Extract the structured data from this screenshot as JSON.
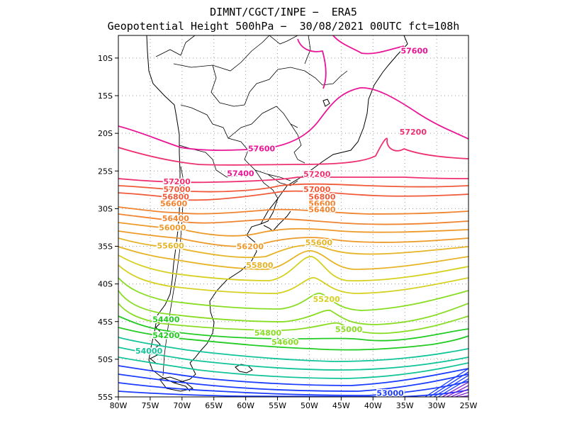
{
  "header": {
    "line1": "DIMNT/CGCT/INPE −  ERA5",
    "line2": "Geopotential Height 500hPa −  30/08/2021 00UTC fct=108h"
  },
  "axes": {
    "lon_labels": [
      "80W",
      "75W",
      "70W",
      "65W",
      "60W",
      "55W",
      "50W",
      "45W",
      "40W",
      "35W",
      "30W",
      "25W"
    ],
    "lat_labels": [
      "10S",
      "15S",
      "20S",
      "25S",
      "30S",
      "35S",
      "40S",
      "45S",
      "50S",
      "55S"
    ]
  },
  "colors": {
    "c53000": "#1c3cff",
    "c54000": "#12c49a",
    "c54200": "#22cc22",
    "c54800": "#88dd22",
    "c55200": "#d6d020",
    "c55600": "#e6b426",
    "c56000": "#ee9a2a",
    "c56400": "#f08430",
    "c56800": "#f05a3a",
    "c57200": "#ee3070",
    "c57600": "#ea1496"
  },
  "chart_data": {
    "type": "contour",
    "variable": "Geopotential Height 500hPa",
    "units": "gpm",
    "x_range_lon": [
      -80,
      -25
    ],
    "y_range_lat": [
      -55,
      -7
    ],
    "contour_interval": 200,
    "contour_labels": [
      {
        "value": "57600",
        "lon": -33.5,
        "lat": -9.0
      },
      {
        "value": "57600",
        "lon": -57.5,
        "lat": -22.0
      },
      {
        "value": "57200",
        "lon": -33.7,
        "lat": -19.8
      },
      {
        "value": "57400",
        "lon": -60.8,
        "lat": -25.3
      },
      {
        "value": "57200",
        "lon": -48.8,
        "lat": -25.4
      },
      {
        "value": "57200",
        "lon": -70.8,
        "lat": -26.4
      },
      {
        "value": "57000",
        "lon": -70.8,
        "lat": -27.4
      },
      {
        "value": "57000",
        "lon": -48.8,
        "lat": -27.4
      },
      {
        "value": "56800",
        "lon": -71.0,
        "lat": -28.4
      },
      {
        "value": "56800",
        "lon": -48.0,
        "lat": -28.4
      },
      {
        "value": "56600",
        "lon": -71.3,
        "lat": -29.3
      },
      {
        "value": "56600",
        "lon": -48.0,
        "lat": -29.3
      },
      {
        "value": "56400",
        "lon": -48.0,
        "lat": -30.1
      },
      {
        "value": "56400",
        "lon": -71.0,
        "lat": -31.3
      },
      {
        "value": "56000",
        "lon": -71.5,
        "lat": -32.5
      },
      {
        "value": "56200",
        "lon": -59.3,
        "lat": -35.0
      },
      {
        "value": "55600",
        "lon": -48.5,
        "lat": -34.5
      },
      {
        "value": "55600",
        "lon": -71.8,
        "lat": -34.9
      },
      {
        "value": "55800",
        "lon": -57.8,
        "lat": -37.5
      },
      {
        "value": "55200",
        "lon": -47.3,
        "lat": -42.0
      },
      {
        "value": "54400",
        "lon": -72.5,
        "lat": -44.7
      },
      {
        "value": "55000",
        "lon": -43.8,
        "lat": -46.0
      },
      {
        "value": "54800",
        "lon": -56.5,
        "lat": -46.5
      },
      {
        "value": "54200",
        "lon": -72.5,
        "lat": -46.8
      },
      {
        "value": "54600",
        "lon": -53.8,
        "lat": -47.7
      },
      {
        "value": "54000",
        "lon": -75.2,
        "lat": -48.9
      },
      {
        "value": "53000",
        "lon": -37.3,
        "lat": -54.5
      }
    ]
  }
}
